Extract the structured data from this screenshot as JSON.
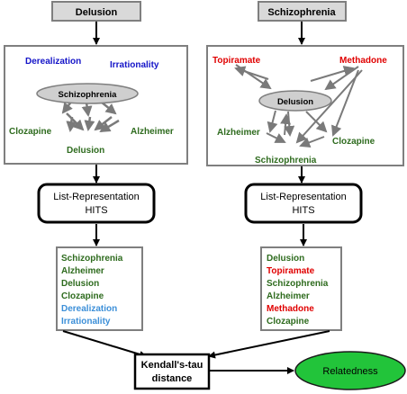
{
  "left": {
    "header": "Delusion",
    "graph": {
      "center": "Schizophrenia",
      "nodes": [
        {
          "label": "Derealization",
          "color": "#1414c8"
        },
        {
          "label": "Irrationality",
          "color": "#1414c8"
        },
        {
          "label": "Clozapine",
          "color": "#2e6b1e"
        },
        {
          "label": "Alzheimer",
          "color": "#2e6b1e"
        },
        {
          "label": "Delusion",
          "color": "#2e6b1e"
        }
      ]
    },
    "process": "List-Representation\nHITS",
    "process_line1": "List-Representation",
    "process_line2": "HITS",
    "ranking": [
      {
        "label": "Schizophrenia",
        "color": "#2e6b1e"
      },
      {
        "label": "Alzheimer",
        "color": "#2e6b1e"
      },
      {
        "label": "Delusion",
        "color": "#2e6b1e"
      },
      {
        "label": "Clozapine",
        "color": "#2e6b1e"
      },
      {
        "label": "Derealization",
        "color": "#3c8fd8"
      },
      {
        "label": "Irrationality",
        "color": "#3c8fd8"
      }
    ]
  },
  "right": {
    "header": "Schizophrenia",
    "graph": {
      "center": "Delusion",
      "nodes": [
        {
          "label": "Topiramate",
          "color": "#e00000"
        },
        {
          "label": "Methadone",
          "color": "#e00000"
        },
        {
          "label": "Alzheimer",
          "color": "#2e6b1e"
        },
        {
          "label": "Clozapine",
          "color": "#2e6b1e"
        },
        {
          "label": "Schizophrenia",
          "color": "#2e6b1e"
        }
      ]
    },
    "process_line1": "List-Representation",
    "process_line2": "HITS",
    "ranking": [
      {
        "label": "Delusion",
        "color": "#2e6b1e"
      },
      {
        "label": "Topiramate",
        "color": "#e00000"
      },
      {
        "label": "Schizophrenia",
        "color": "#2e6b1e"
      },
      {
        "label": "Alzheimer",
        "color": "#2e6b1e"
      },
      {
        "label": "Methadone",
        "color": "#e00000"
      },
      {
        "label": "Clozapine",
        "color": "#2e6b1e"
      }
    ]
  },
  "distance": {
    "line1": "Kendall's-tau",
    "line2": "distance"
  },
  "result": "Relatedness"
}
